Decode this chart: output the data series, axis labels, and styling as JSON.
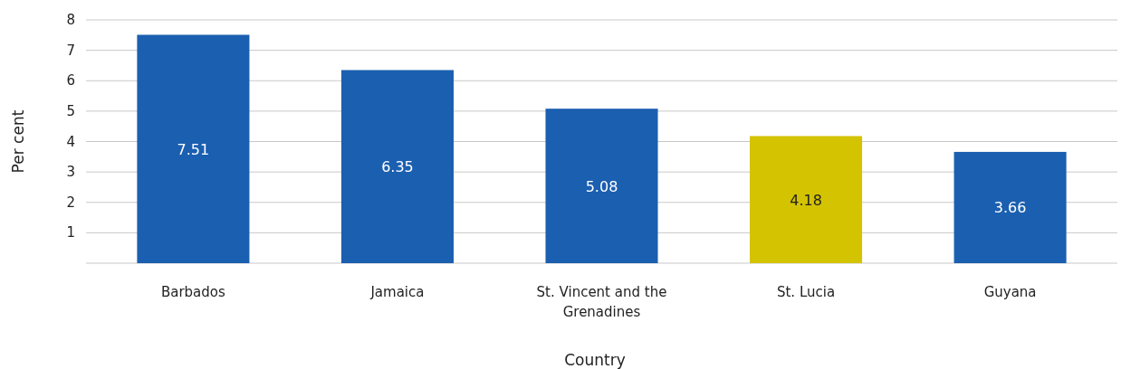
{
  "chart_data": {
    "type": "bar",
    "xlabel": "Country",
    "ylabel": "Per cent",
    "categories": [
      "Barbados",
      "Jamaica",
      "St. Vincent and the Grenadines",
      "St. Lucia",
      "Guyana"
    ],
    "values": [
      7.51,
      6.35,
      5.08,
      4.18,
      3.66
    ],
    "colors": [
      "#1b5fb0",
      "#1b5fb0",
      "#1b5fb0",
      "#d4c300",
      "#1b5fb0"
    ],
    "ylim": [
      0,
      8
    ],
    "yticks": [
      {
        "value": 0,
        "label": null
      },
      1,
      2,
      3,
      4,
      5,
      6,
      7,
      8
    ],
    "grid": "y",
    "data_labels": true
  }
}
